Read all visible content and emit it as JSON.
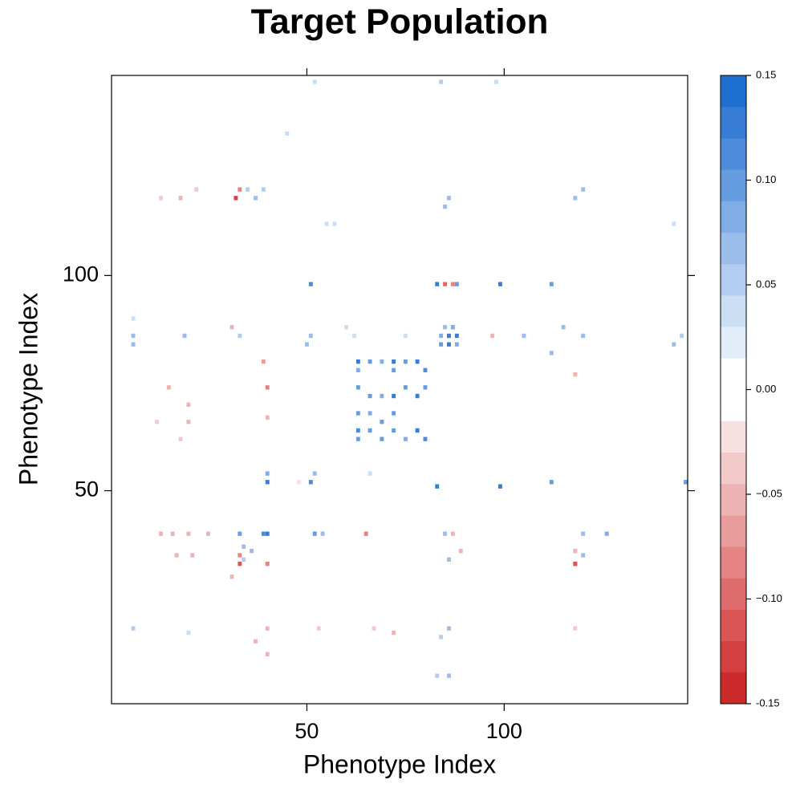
{
  "chart_data": {
    "type": "heatmap",
    "title": "Target Population",
    "x_label": "Phenotype Index",
    "y_label": "Phenotype Index",
    "xlim": [
      0.5,
      146.5
    ],
    "ylim": [
      0.5,
      146.5
    ],
    "xticks": [
      50,
      100
    ],
    "yticks": [
      50,
      100
    ],
    "clim": [
      -0.15,
      0.15
    ],
    "colorbar_ticks": [
      -0.15,
      {
        "value": -0.1,
        "label": "−0.10"
      },
      {
        "value": -0.05,
        "label": "−0.05"
      },
      {
        "value": 0,
        "label": "0.00"
      },
      0.05,
      {
        "value": 0.1,
        "label": "0.10"
      },
      0.15
    ],
    "colors": [
      "#cc2a2a",
      "#d44040",
      "#da5656",
      "#df6c6c",
      "#e48484",
      "#e99c9c",
      "#eeb4b4",
      "#f2caca",
      "#f6e0e0",
      "#ffffff",
      "#ffffff",
      "#e2edf9",
      "#cadef4",
      "#b2cdef",
      "#9abdea",
      "#80ade5",
      "#669ce0",
      "#4e8cdb",
      "#377dd6",
      "#1f6fd0"
    ],
    "x": [
      51,
      83,
      88,
      99,
      112,
      84,
      86,
      88,
      86,
      84,
      88,
      85,
      87,
      63,
      66,
      69,
      72,
      75,
      78,
      80,
      63,
      72,
      63,
      66,
      69,
      72,
      75,
      78,
      80,
      63,
      66,
      69,
      72,
      63,
      66,
      72,
      78,
      80,
      63,
      69,
      75,
      40,
      51,
      83,
      99,
      112,
      146,
      52,
      40,
      40,
      39,
      33,
      52,
      54,
      85,
      120,
      126,
      34,
      36,
      118,
      120,
      34,
      86,
      118,
      37,
      35,
      39,
      118,
      120,
      86,
      85,
      6,
      6,
      19,
      33,
      62,
      75,
      105,
      115,
      120,
      143,
      145,
      112,
      50,
      51,
      86,
      84,
      6,
      86,
      83,
      20,
      32,
      33,
      13,
      18,
      22,
      85,
      87,
      33,
      33,
      118,
      118,
      40,
      40,
      39,
      65,
      87,
      13,
      16,
      20,
      25,
      89,
      17,
      21,
      31,
      40,
      40,
      37,
      40,
      53,
      67,
      72,
      15,
      20,
      20,
      18,
      12,
      48,
      97,
      118,
      118,
      31,
      55,
      57,
      6,
      60,
      45,
      98,
      52,
      143,
      84,
      66
    ],
    "y": [
      98,
      98,
      98,
      98,
      98,
      86,
      86,
      86,
      84,
      84,
      84,
      88,
      88,
      80,
      80,
      80,
      80,
      80,
      80,
      78,
      78,
      78,
      74,
      72,
      72,
      72,
      74,
      72,
      74,
      68,
      68,
      66,
      68,
      64,
      64,
      64,
      64,
      62,
      62,
      62,
      62,
      52,
      52,
      51,
      51,
      52,
      52,
      54,
      54,
      40,
      40,
      40,
      40,
      40,
      40,
      40,
      40,
      37,
      36,
      36,
      35,
      34,
      34,
      33,
      118,
      120,
      120,
      118,
      120,
      118,
      116,
      86,
      84,
      86,
      86,
      86,
      86,
      86,
      88,
      86,
      84,
      86,
      82,
      84,
      86,
      18,
      16,
      18,
      7,
      7,
      17,
      118,
      120,
      118,
      118,
      120,
      98,
      98,
      33,
      35,
      33,
      36,
      74,
      67,
      80,
      40,
      40,
      40,
      40,
      40,
      40,
      36,
      35,
      35,
      30,
      33,
      18,
      15,
      12,
      18,
      18,
      17,
      74,
      70,
      66,
      62,
      66,
      52,
      86,
      77,
      18,
      88,
      112,
      112,
      90,
      88,
      133,
      145,
      145,
      112,
      145,
      54
    ],
    "values": [
      0.11,
      0.12,
      0.1,
      0.12,
      0.1,
      0.08,
      0.13,
      0.12,
      0.12,
      0.09,
      0.08,
      0.07,
      0.08,
      0.12,
      0.1,
      0.08,
      0.12,
      0.09,
      0.12,
      0.11,
      0.08,
      0.1,
      0.09,
      0.1,
      0.08,
      0.12,
      0.1,
      0.12,
      0.09,
      0.1,
      0.08,
      0.09,
      0.1,
      0.11,
      0.09,
      0.1,
      0.12,
      0.11,
      0.09,
      0.1,
      0.08,
      0.12,
      0.11,
      0.12,
      0.12,
      0.09,
      0.1,
      0.06,
      0.08,
      0.13,
      0.11,
      0.1,
      0.1,
      0.07,
      0.06,
      0.06,
      0.08,
      0.06,
      0.07,
      0.06,
      0.07,
      0.05,
      0.06,
      0.07,
      0.06,
      0.05,
      0.05,
      0.06,
      0.06,
      0.07,
      0.06,
      0.06,
      0.07,
      0.06,
      0.05,
      0.04,
      0.04,
      0.06,
      0.06,
      0.07,
      0.06,
      0.05,
      0.06,
      0.06,
      0.06,
      0.06,
      0.05,
      0.05,
      0.06,
      0.05,
      0.04,
      -0.13,
      -0.08,
      -0.04,
      -0.05,
      -0.04,
      -0.1,
      -0.08,
      -0.11,
      -0.08,
      -0.11,
      -0.06,
      -0.08,
      -0.06,
      -0.07,
      -0.08,
      -0.06,
      -0.06,
      -0.05,
      -0.05,
      -0.05,
      -0.06,
      -0.05,
      -0.06,
      -0.05,
      -0.08,
      -0.06,
      -0.05,
      -0.05,
      -0.04,
      -0.04,
      -0.05,
      -0.05,
      -0.05,
      -0.06,
      -0.04,
      -0.04,
      -0.03,
      -0.06,
      -0.05,
      -0.04,
      -0.05,
      0.04,
      0.04,
      0.03,
      0.03,
      0.03,
      0.04,
      0.04,
      0.04,
      0.05,
      0.04
    ]
  }
}
